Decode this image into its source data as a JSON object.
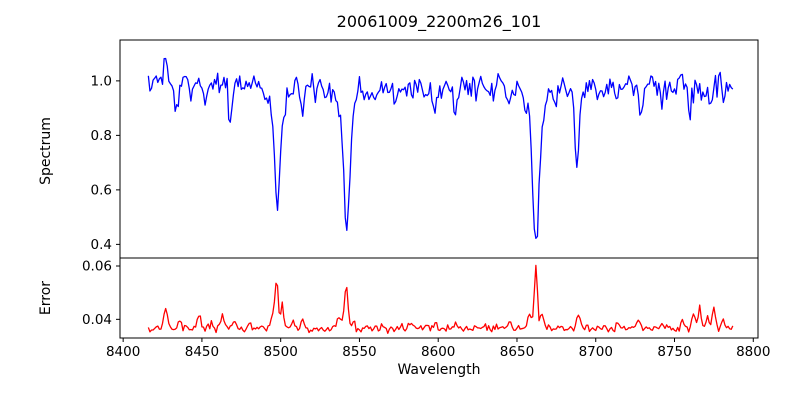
{
  "chart_data": [
    {
      "type": "line",
      "title": "20061009_2200m26_101",
      "ylabel": "Spectrum",
      "line_color": "#0000ff",
      "axis_color": "#000000",
      "background": "#ffffff",
      "grid": false,
      "legend": null,
      "x_start": 8416,
      "x_end": 8787,
      "x_step": 1,
      "xlim": [
        8398,
        8803
      ],
      "ylim": [
        0.35,
        1.15
      ],
      "ytick_values": [
        0.4,
        0.6,
        0.8,
        1.0
      ],
      "ytick_labels": [
        "0.4",
        "0.6",
        "0.8",
        "1.0"
      ],
      "continuum_start": 0.995,
      "continuum_end": 0.968,
      "noise_sigma": 0.021,
      "noise_seed": 1234,
      "absorption_lines": [
        [
          8433.5,
          0.13,
          1.2
        ],
        [
          8443,
          0.05,
          0.9
        ],
        [
          8452,
          0.07,
          1.0
        ],
        [
          8468,
          0.135,
          1.1
        ],
        [
          8476,
          0.05,
          0.9
        ],
        [
          8490,
          0.04,
          0.9
        ],
        [
          8498,
          0.36,
          1.6
        ],
        [
          8498,
          0.105,
          4.8
        ],
        [
          8514,
          0.11,
          1.2
        ],
        [
          8522,
          0.05,
          0.9
        ],
        [
          8542,
          0.41,
          1.8
        ],
        [
          8542,
          0.115,
          5.8
        ],
        [
          8560,
          0.045,
          1.0
        ],
        [
          8572,
          0.05,
          1.0
        ],
        [
          8583,
          0.045,
          1.0
        ],
        [
          8598,
          0.085,
          1.2
        ],
        [
          8611,
          0.095,
          1.2
        ],
        [
          8624,
          0.05,
          1.0
        ],
        [
          8634,
          0.04,
          0.9
        ],
        [
          8645,
          0.075,
          1.2
        ],
        [
          8662,
          0.475,
          1.8
        ],
        [
          8662,
          0.125,
          5.2
        ],
        [
          8675,
          0.06,
          1.0
        ],
        [
          8688,
          0.27,
          1.3
        ],
        [
          8702,
          0.04,
          0.9
        ],
        [
          8713,
          0.05,
          1.0
        ],
        [
          8729,
          0.105,
          1.2
        ],
        [
          8742,
          0.05,
          1.0
        ],
        [
          8760,
          0.07,
          1.1
        ],
        [
          8773,
          0.06,
          1.0
        ]
      ],
      "emission_spikes": [
        [
          8427,
          0.115,
          0.9
        ],
        [
          8550,
          0.05,
          0.8
        ],
        [
          8722,
          0.05,
          0.7
        ],
        [
          8754,
          0.1,
          0.8
        ],
        [
          8779,
          0.07,
          0.7
        ]
      ]
    },
    {
      "type": "line",
      "ylabel": "Error",
      "xlabel": "Wavelength",
      "line_color": "#ff0000",
      "axis_color": "#000000",
      "background": "#ffffff",
      "grid": false,
      "legend": null,
      "x_start": 8416,
      "x_end": 8787,
      "x_step": 1,
      "xlim": [
        8398,
        8803
      ],
      "ylim": [
        0.033,
        0.063
      ],
      "ytick_values": [
        0.04,
        0.06
      ],
      "ytick_labels": [
        "0.04",
        "0.06"
      ],
      "xtick_values": [
        8400,
        8450,
        8500,
        8550,
        8600,
        8650,
        8700,
        8750,
        8800
      ],
      "xtick_labels": [
        "8400",
        "8450",
        "8500",
        "8550",
        "8600",
        "8650",
        "8700",
        "8750",
        "8800"
      ],
      "baseline": 0.0366,
      "noise_sigma": 0.0007,
      "noise_seed": 99,
      "peaks": [
        [
          8427,
          0.0075,
          1.1
        ],
        [
          8436,
          0.0028,
          1.0
        ],
        [
          8448,
          0.0045,
          1.0
        ],
        [
          8456,
          0.0028,
          0.9
        ],
        [
          8463,
          0.0055,
          1.0
        ],
        [
          8471,
          0.0032,
          1.0
        ],
        [
          8480,
          0.002,
          0.9
        ],
        [
          8495,
          0.004,
          1.5
        ],
        [
          8497.5,
          0.017,
          1.0
        ],
        [
          8501,
          0.0095,
          0.9
        ],
        [
          8508,
          0.002,
          1.0
        ],
        [
          8514,
          0.0025,
          1.0
        ],
        [
          8537,
          0.0035,
          1.2
        ],
        [
          8541.5,
          0.0165,
          1.1
        ],
        [
          8546,
          0.003,
          1.0
        ],
        [
          8565,
          0.002,
          1.0
        ],
        [
          8583,
          0.0018,
          1.0
        ],
        [
          8598,
          0.002,
          1.0
        ],
        [
          8611,
          0.0025,
          1.0
        ],
        [
          8630,
          0.0015,
          1.0
        ],
        [
          8645,
          0.002,
          1.0
        ],
        [
          8658,
          0.005,
          1.4
        ],
        [
          8662,
          0.0235,
          1.0
        ],
        [
          8666,
          0.004,
          1.2
        ],
        [
          8689,
          0.006,
          1.0
        ],
        [
          8702,
          0.0015,
          1.0
        ],
        [
          8714,
          0.002,
          1.0
        ],
        [
          8727,
          0.0032,
          1.1
        ],
        [
          8742,
          0.002,
          1.0
        ],
        [
          8755,
          0.003,
          1.0
        ],
        [
          8762,
          0.0055,
          1.0
        ],
        [
          8766,
          0.009,
          0.9
        ],
        [
          8771,
          0.004,
          1.0
        ],
        [
          8775,
          0.0075,
          1.0
        ],
        [
          8781,
          0.003,
          0.9
        ]
      ]
    }
  ]
}
